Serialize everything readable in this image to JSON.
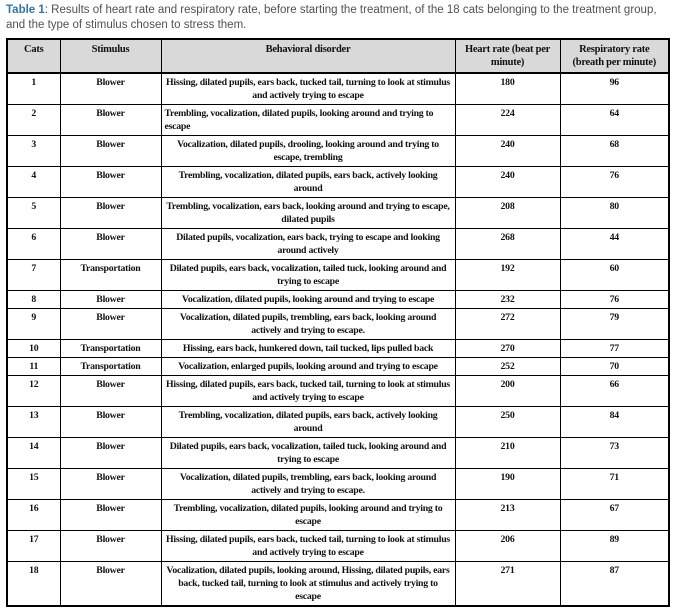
{
  "caption": {
    "label": "Table 1",
    "rest": ": Results of heart rate and respiratory rate, before starting the treatment, of the 18 cats belonging to the treatment group, and the type of stimulus chosen to stress them."
  },
  "colors": {
    "caption_accent": "#2E75B6",
    "caption_text": "#515151",
    "header_bg": "#D9D9D9",
    "border": "#000000",
    "body_text": "#111111"
  },
  "chart_data": {
    "type": "table",
    "title": "Table 1: Results of heart rate and respiratory rate, before starting the treatment, of the 18 cats belonging to the treatment group, and the type of stimulus chosen to stress them.",
    "headers": [
      "Cats",
      "Stimulus",
      "Behavioral disorder",
      "Heart rate (beat per minute)",
      "Respiratory rate (breath per minute)"
    ],
    "rows": [
      {
        "cat": "1",
        "stimulus": "Blower",
        "behavior": "Hissing, dilated pupils, ears back, tucked tail, turning to look at stimulus and actively trying to escape",
        "heart_rate": "180",
        "respiratory_rate": "96"
      },
      {
        "cat": "2",
        "stimulus": "Blower",
        "behavior": "Trembling, vocalization, dilated pupils, looking around and trying to escape",
        "heart_rate": "224",
        "respiratory_rate": "64",
        "behavior_align": "left"
      },
      {
        "cat": "3",
        "stimulus": "Blower",
        "behavior": "Vocalization, dilated pupils, drooling, looking around and trying to escape, trembling",
        "heart_rate": "240",
        "respiratory_rate": "68"
      },
      {
        "cat": "4",
        "stimulus": "Blower",
        "behavior": "Trembling, vocalization, dilated pupils, ears back, actively looking around",
        "heart_rate": "240",
        "respiratory_rate": "76"
      },
      {
        "cat": "5",
        "stimulus": "Blower",
        "behavior": "Trembling, vocalization, ears back, looking around and trying to escape, dilated pupils",
        "heart_rate": "208",
        "respiratory_rate": "80"
      },
      {
        "cat": "6",
        "stimulus": "Blower",
        "behavior": "Dilated pupils, vocalization, ears back, trying to escape and looking around actively",
        "heart_rate": "268",
        "respiratory_rate": "44"
      },
      {
        "cat": "7",
        "stimulus": "Transportation",
        "behavior": "Dilated pupils, ears back, vocalization, tailed tuck, looking around and trying to escape",
        "heart_rate": "192",
        "respiratory_rate": "60"
      },
      {
        "cat": "8",
        "stimulus": "Blower",
        "behavior": "Vocalization, dilated pupils, looking around and trying to escape",
        "heart_rate": "232",
        "respiratory_rate": "76"
      },
      {
        "cat": "9",
        "stimulus": "Blower",
        "behavior": "Vocalization, dilated pupils, trembling, ears back, looking around actively and trying to escape.",
        "heart_rate": "272",
        "respiratory_rate": "79"
      },
      {
        "cat": "10",
        "stimulus": "Transportation",
        "behavior": "Hissing, ears back, hunkered down, tail tucked, lips pulled back",
        "heart_rate": "270",
        "respiratory_rate": "77"
      },
      {
        "cat": "11",
        "stimulus": "Transportation",
        "behavior": "Vocalization, enlarged pupils, looking around and trying to escape",
        "heart_rate": "252",
        "respiratory_rate": "70"
      },
      {
        "cat": "12",
        "stimulus": "Blower",
        "behavior": "Hissing, dilated pupils, ears back, tucked tail, turning to look at stimulus and actively trying to escape",
        "heart_rate": "200",
        "respiratory_rate": "66"
      },
      {
        "cat": "13",
        "stimulus": "Blower",
        "behavior": "Trembling, vocalization, dilated pupils, ears back, actively looking around",
        "heart_rate": "250",
        "respiratory_rate": "84"
      },
      {
        "cat": "14",
        "stimulus": "Blower",
        "behavior": "Dilated pupils, ears back, vocalization, tailed tuck, looking around and trying to escape",
        "heart_rate": "210",
        "respiratory_rate": "73"
      },
      {
        "cat": "15",
        "stimulus": "Blower",
        "behavior": "Vocalization, dilated pupils, trembling, ears back, looking around actively and trying to escape.",
        "heart_rate": "190",
        "respiratory_rate": "71"
      },
      {
        "cat": "16",
        "stimulus": "Blower",
        "behavior": "Trembling, vocalization, dilated pupils, looking around and trying to escape",
        "heart_rate": "213",
        "respiratory_rate": "67"
      },
      {
        "cat": "17",
        "stimulus": "Blower",
        "behavior": "Hissing, dilated pupils, ears back, tucked tail, turning to look at stimulus and actively trying to escape",
        "heart_rate": "206",
        "respiratory_rate": "89"
      },
      {
        "cat": "18",
        "stimulus": "Blower",
        "behavior": "Vocalization, dilated pupils, looking around, Hissing, dilated pupils, ears back, tucked tail, turning to look at stimulus and actively trying to escape",
        "heart_rate": "271",
        "respiratory_rate": "87"
      }
    ]
  }
}
